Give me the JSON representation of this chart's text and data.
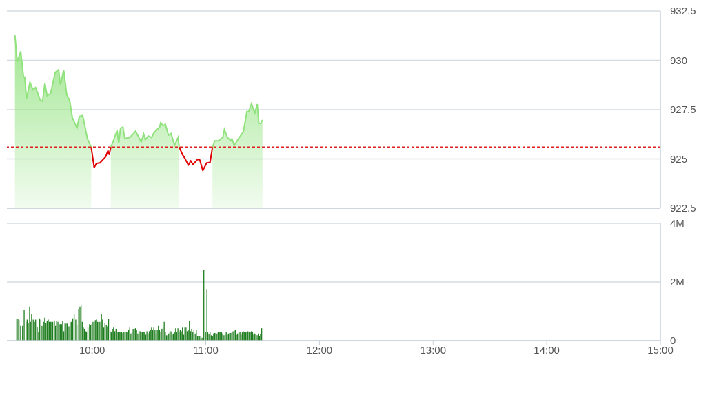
{
  "chart_data": [
    {
      "type": "area",
      "xlim": [
        9.25,
        15
      ],
      "ylim": [
        922.5,
        932.5
      ],
      "yticks": [
        932.5,
        930,
        927.5,
        925,
        922.5
      ],
      "tick_labels": "y",
      "grid": "y",
      "x": [
        9.321,
        9.341,
        9.372,
        9.396,
        9.408,
        9.422,
        9.453,
        9.479,
        9.503,
        9.544,
        9.564,
        9.584,
        9.604,
        9.635,
        9.675,
        9.705,
        9.721,
        9.75,
        9.776,
        9.802,
        9.826,
        9.867,
        9.887,
        9.917,
        9.958,
        9.992,
        10.018,
        10.038,
        10.069,
        10.119,
        10.139,
        10.15,
        10.165,
        10.19,
        10.22,
        10.234,
        10.25,
        10.271,
        10.287,
        10.331,
        10.362,
        10.382,
        10.432,
        10.453,
        10.468,
        10.493,
        10.523,
        10.544,
        10.594,
        10.604,
        10.624,
        10.644,
        10.671,
        10.695,
        10.725,
        10.756,
        10.766,
        10.796,
        10.816,
        10.847,
        10.867,
        10.887,
        10.927,
        10.947,
        10.974,
        11.008,
        11.038,
        11.059,
        11.079,
        11.109,
        11.15,
        11.164,
        11.19,
        11.22,
        11.23,
        11.25,
        11.281,
        11.331,
        11.362,
        11.377,
        11.402,
        11.432,
        11.453,
        11.467,
        11.483,
        11.499
      ],
      "series": [
        {
          "color": "#8fe27c",
          "values": [
            931.27,
            929.92,
            930.45,
            929.15,
            929.15,
            928.04,
            928.89,
            928.51,
            928.62,
            927.98,
            927.92,
            928.84,
            928.21,
            928.33,
            929.39,
            929.53,
            928.74,
            929.51,
            928.27,
            927.98,
            927.09,
            926.56,
            927.15,
            927.21,
            926.03,
            925.6,
            null,
            null,
            null,
            null,
            null,
            null,
            925.6,
            925.97,
            926.45,
            925.8,
            926.56,
            926.62,
            926.03,
            926.09,
            926.27,
            926.41,
            925.86,
            926.27,
            925.97,
            926.17,
            926.09,
            926.33,
            926.62,
            926.84,
            926.68,
            926.76,
            926.21,
            926.29,
            925.68,
            926.09,
            925.6,
            null,
            null,
            null,
            null,
            null,
            null,
            null,
            null,
            null,
            null,
            925.6,
            925.92,
            925.92,
            926.09,
            926.5,
            926.09,
            925.92,
            926.03,
            925.68,
            925.97,
            926.39,
            927.41,
            927.39,
            927.8,
            927.33,
            927.78,
            926.8,
            926.8,
            926.98
          ]
        },
        {
          "type": "line",
          "color": "#e00000",
          "values": [
            null,
            null,
            null,
            null,
            null,
            null,
            null,
            null,
            null,
            null,
            null,
            null,
            null,
            null,
            null,
            null,
            null,
            null,
            null,
            null,
            null,
            null,
            null,
            null,
            null,
            925.6,
            924.56,
            924.77,
            924.8,
            925.11,
            925.42,
            925.23,
            925.6,
            null,
            null,
            null,
            null,
            null,
            null,
            null,
            null,
            null,
            null,
            null,
            null,
            null,
            null,
            null,
            null,
            null,
            null,
            null,
            null,
            null,
            null,
            null,
            925.6,
            925.21,
            925.03,
            924.68,
            924.91,
            924.72,
            924.97,
            924.95,
            924.41,
            924.8,
            924.83,
            925.6,
            null,
            null,
            null,
            null,
            null,
            null,
            null,
            null,
            null,
            null,
            null,
            null,
            null,
            null,
            null,
            null,
            null,
            null
          ]
        }
      ],
      "ref_lines": [
        {
          "axis": "y",
          "value": 925.6,
          "color": "#e02020",
          "line_style": "dashed"
        }
      ]
    },
    {
      "type": "bar",
      "color": "#1e7d1e",
      "xlim": [
        9.25,
        15
      ],
      "xticks": [
        {
          "value": 10,
          "label": "10:00"
        },
        {
          "value": 11,
          "label": "11:00"
        },
        {
          "value": 12,
          "label": "12:00"
        },
        {
          "value": 13,
          "label": "13:00"
        },
        {
          "value": 14,
          "label": "14:00"
        },
        {
          "value": 15,
          "label": "15:00"
        }
      ],
      "ylim": [
        0,
        4000000
      ],
      "yticks": [
        {
          "value": 4000000,
          "label": "4M"
        },
        {
          "value": 2000000,
          "label": "2M"
        },
        0
      ],
      "grid": "y",
      "x": [
        9.337,
        9.347,
        9.357,
        9.371,
        9.388,
        9.402,
        9.418,
        9.428,
        9.438,
        9.45,
        9.458,
        9.468,
        9.482,
        9.493,
        9.503,
        9.517,
        9.529,
        9.537,
        9.549,
        9.559,
        9.573,
        9.583,
        9.594,
        9.604,
        9.614,
        9.624,
        9.634,
        9.644,
        9.654,
        9.668,
        9.678,
        9.688,
        9.699,
        9.711,
        9.721,
        9.731,
        9.741,
        9.751,
        9.761,
        9.771,
        9.781,
        9.796,
        9.806,
        9.816,
        9.83,
        9.842,
        9.856,
        9.866,
        9.882,
        9.893,
        9.903,
        9.913,
        9.923,
        9.933,
        9.943,
        9.951,
        9.963,
        9.977,
        9.987,
        9.998,
        10.008,
        10.018,
        10.028,
        10.038,
        10.048,
        10.058,
        10.068,
        10.082,
        10.092,
        10.103,
        10.113,
        10.125,
        10.135,
        10.145,
        10.159,
        10.169,
        10.179,
        10.189,
        10.2,
        10.21,
        10.22,
        10.23,
        10.24,
        10.25,
        10.26,
        10.27,
        10.28,
        10.29,
        10.301,
        10.311,
        10.321,
        10.331,
        10.341,
        10.351,
        10.361,
        10.371,
        10.381,
        10.391,
        10.402,
        10.412,
        10.422,
        10.432,
        10.442,
        10.452,
        10.462,
        10.472,
        10.482,
        10.492,
        10.503,
        10.513,
        10.523,
        10.533,
        10.543,
        10.553,
        10.563,
        10.573,
        10.583,
        10.593,
        10.604,
        10.614,
        10.624,
        10.634,
        10.644,
        10.654,
        10.664,
        10.674,
        10.684,
        10.694,
        10.705,
        10.715,
        10.725,
        10.735,
        10.745,
        10.755,
        10.765,
        10.775,
        10.785,
        10.795,
        10.806,
        10.816,
        10.826,
        10.836,
        10.846,
        10.856,
        10.866,
        10.876,
        10.886,
        10.896,
        10.907,
        10.917,
        10.927,
        10.937,
        10.947,
        10.957,
        10.967,
        10.983,
        10.998,
        11.01,
        11.018,
        11.028,
        11.038,
        11.048,
        11.059,
        11.069,
        11.079,
        11.089,
        11.099,
        11.109,
        11.119,
        11.129,
        11.139,
        11.149,
        11.16,
        11.17,
        11.18,
        11.19,
        11.2,
        11.21,
        11.22,
        11.23,
        11.24,
        11.25,
        11.26,
        11.27,
        11.28,
        11.291,
        11.301,
        11.311,
        11.321,
        11.331,
        11.341,
        11.351,
        11.361,
        11.371,
        11.381,
        11.391,
        11.401,
        11.412,
        11.422,
        11.432,
        11.442,
        11.452,
        11.462,
        11.472,
        11.482,
        11.492
      ],
      "values": [
        760000,
        740000,
        700000,
        500000,
        500000,
        1040000,
        640000,
        720000,
        600000,
        1160000,
        640000,
        900000,
        720000,
        640000,
        720000,
        460000,
        280000,
        760000,
        720000,
        500000,
        640000,
        780000,
        600000,
        660000,
        720000,
        640000,
        640000,
        640000,
        640000,
        660000,
        500000,
        660000,
        640000,
        560000,
        560000,
        560000,
        680000,
        320000,
        580000,
        580000,
        580000,
        480000,
        620000,
        640000,
        760000,
        900000,
        720000,
        520000,
        1080000,
        1160000,
        1200000,
        640000,
        440000,
        400000,
        320000,
        310000,
        440000,
        560000,
        520000,
        560000,
        640000,
        640000,
        700000,
        720000,
        640000,
        640000,
        640000,
        920000,
        720000,
        440000,
        580000,
        540000,
        480000,
        740000,
        320000,
        280000,
        400000,
        440000,
        320000,
        400000,
        280000,
        300000,
        300000,
        300000,
        280000,
        260000,
        280000,
        300000,
        300000,
        300000,
        360000,
        440000,
        240000,
        280000,
        400000,
        400000,
        420000,
        360000,
        240000,
        320000,
        320000,
        280000,
        300000,
        280000,
        300000,
        200000,
        320000,
        240000,
        320000,
        360000,
        440000,
        360000,
        440000,
        360000,
        240000,
        360000,
        500000,
        360000,
        280000,
        400000,
        440000,
        640000,
        280000,
        180000,
        180000,
        240000,
        280000,
        320000,
        200000,
        240000,
        280000,
        420000,
        280000,
        420000,
        280000,
        360000,
        320000,
        440000,
        200000,
        440000,
        440000,
        320000,
        360000,
        660000,
        320000,
        400000,
        280000,
        360000,
        240000,
        360000,
        160000,
        160000,
        160000,
        80000,
        100000,
        2400000,
        280000,
        1760000,
        280000,
        220000,
        280000,
        180000,
        160000,
        240000,
        260000,
        260000,
        240000,
        300000,
        300000,
        280000,
        280000,
        240000,
        180000,
        200000,
        280000,
        200000,
        240000,
        260000,
        260000,
        280000,
        320000,
        340000,
        360000,
        200000,
        240000,
        280000,
        280000,
        200000,
        280000,
        320000,
        280000,
        280000,
        300000,
        320000,
        300000,
        300000,
        320000,
        280000,
        200000,
        240000,
        220000,
        180000,
        240000,
        160000,
        220000,
        420000
      ]
    }
  ]
}
